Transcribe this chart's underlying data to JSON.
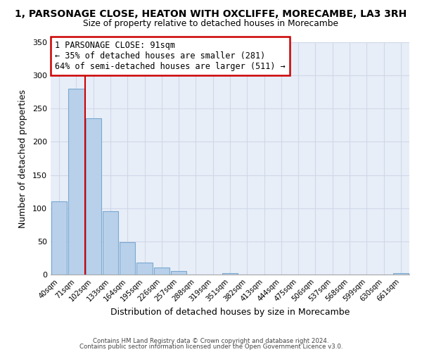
{
  "title": "1, PARSONAGE CLOSE, HEATON WITH OXCLIFFE, MORECAMBE, LA3 3RH",
  "subtitle": "Size of property relative to detached houses in Morecambe",
  "xlabel": "Distribution of detached houses by size in Morecambe",
  "ylabel": "Number of detached properties",
  "bin_labels": [
    "40sqm",
    "71sqm",
    "102sqm",
    "133sqm",
    "164sqm",
    "195sqm",
    "226sqm",
    "257sqm",
    "288sqm",
    "319sqm",
    "351sqm",
    "382sqm",
    "413sqm",
    "444sqm",
    "475sqm",
    "506sqm",
    "537sqm",
    "568sqm",
    "599sqm",
    "630sqm",
    "661sqm"
  ],
  "bar_values": [
    110,
    280,
    235,
    95,
    49,
    18,
    11,
    5,
    0,
    0,
    2,
    0,
    0,
    0,
    0,
    0,
    0,
    0,
    0,
    0,
    2
  ],
  "bar_color": "#b8d0ea",
  "bar_edge_color": "#7aa8d0",
  "vline_color": "#cc0000",
  "vline_x": 1.5,
  "ylim": [
    0,
    350
  ],
  "yticks": [
    0,
    50,
    100,
    150,
    200,
    250,
    300,
    350
  ],
  "annotation_text": "1 PARSONAGE CLOSE: 91sqm\n← 35% of detached houses are smaller (281)\n64% of semi-detached houses are larger (511) →",
  "annotation_box_color": "#ffffff",
  "annotation_box_edge": "#cc0000",
  "footer1": "Contains HM Land Registry data © Crown copyright and database right 2024.",
  "footer2": "Contains public sector information licensed under the Open Government Licence v3.0.",
  "bg_color": "#ffffff",
  "grid_color": "#d0d8e8"
}
